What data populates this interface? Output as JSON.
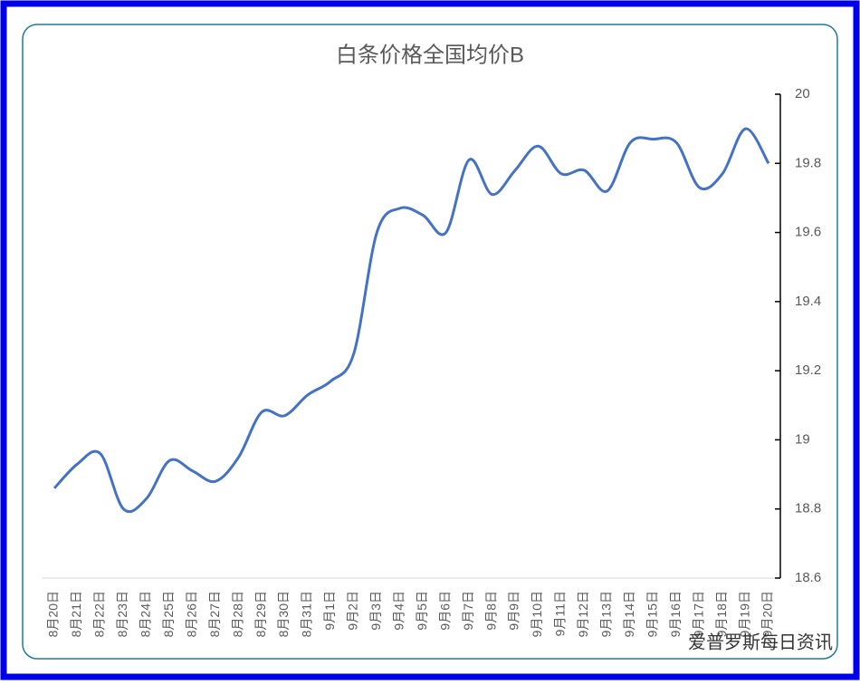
{
  "chart_data": {
    "type": "line",
    "title": "白条价格全国均价B",
    "categories": [
      "8月20日",
      "8月21日",
      "8月22日",
      "8月23日",
      "8月24日",
      "8月25日",
      "8月26日",
      "8月27日",
      "8月28日",
      "8月29日",
      "8月30日",
      "8月31日",
      "9月1日",
      "9月2日",
      "9月3日",
      "9月4日",
      "9月5日",
      "9月6日",
      "9月7日",
      "9月8日",
      "9月9日",
      "9月10日",
      "9月11日",
      "9月12日",
      "9月13日",
      "9月14日",
      "9月15日",
      "9月16日",
      "9月17日",
      "9月18日",
      "9月19日",
      "9月20日"
    ],
    "values": [
      18.86,
      18.93,
      18.96,
      18.8,
      18.83,
      18.94,
      18.91,
      18.88,
      18.95,
      19.08,
      19.07,
      19.13,
      19.17,
      19.25,
      19.6,
      19.67,
      19.65,
      19.6,
      19.81,
      19.71,
      19.78,
      19.85,
      19.77,
      19.78,
      19.72,
      19.86,
      19.87,
      19.86,
      19.73,
      19.77,
      19.9,
      19.8
    ],
    "color": "#4472c4",
    "smooth": true,
    "ylim": [
      18.6,
      20
    ],
    "yticks": [
      18.6,
      18.8,
      19,
      19.2,
      19.4,
      19.6,
      19.8,
      20
    ],
    "watermark": "爱普罗斯每日资讯"
  }
}
